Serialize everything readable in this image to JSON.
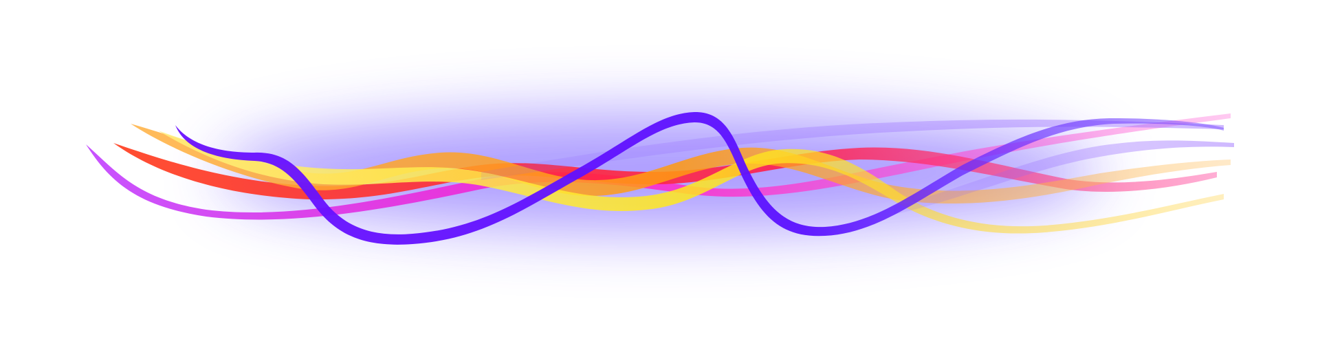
{
  "scene": {
    "description_free": true,
    "background_color": "#ffffff",
    "glow_color": "#6b4dff",
    "ribbons": [
      {
        "name": "violet-ribbon",
        "color": "#5b12ff"
      },
      {
        "name": "magenta-ribbon",
        "color": "#ff1fc8"
      },
      {
        "name": "red-ribbon",
        "color": "#ff2a2a"
      },
      {
        "name": "orange-ribbon",
        "color": "#ffa21a"
      },
      {
        "name": "yellow-ribbon",
        "color": "#ffe81a"
      },
      {
        "name": "purple-ribbon",
        "color": "#b43cff"
      },
      {
        "name": "lavender-ribbon",
        "color": "#8a5cff"
      }
    ]
  }
}
